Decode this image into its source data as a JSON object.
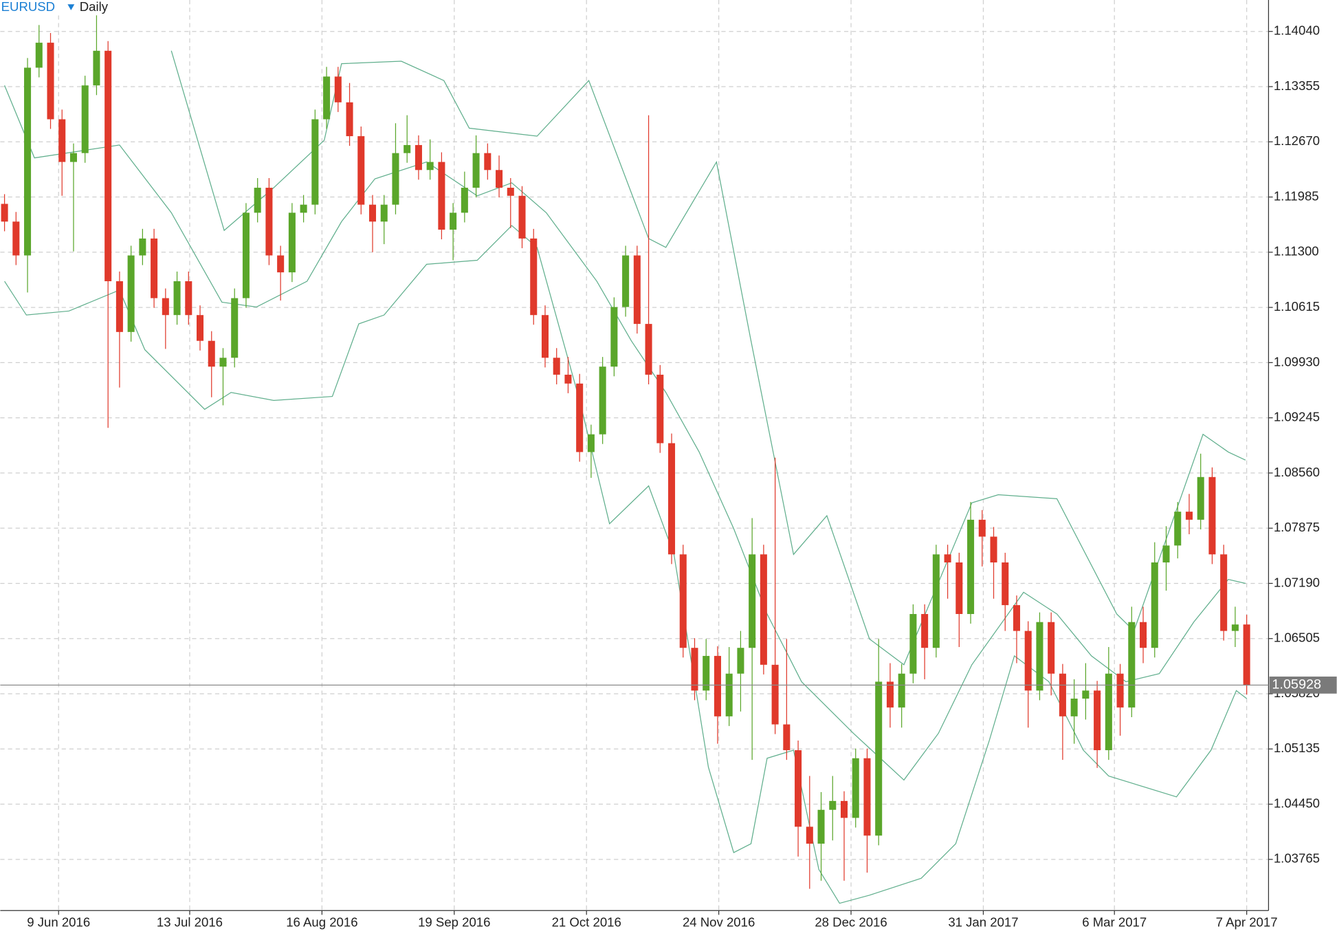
{
  "chart_data": {
    "type": "candlestick",
    "symbol": "EURUSD",
    "timeframe": "Daily",
    "up_color": "#5aa62a",
    "down_color": "#e0392b",
    "grid": true,
    "xlim": [
      -0.37,
      109.9
    ],
    "ylim": [
      1.0313,
      1.1443
    ],
    "xticks": [
      {
        "value": 4.7,
        "label": "9 Jun 2016"
      },
      {
        "value": 16.1,
        "label": "13 Jul 2016"
      },
      {
        "value": 27.6,
        "label": "16 Aug 2016"
      },
      {
        "value": 39.1,
        "label": "19 Sep 2016"
      },
      {
        "value": 50.6,
        "label": "21 Oct 2016"
      },
      {
        "value": 62.1,
        "label": "24 Nov 2016"
      },
      {
        "value": 73.6,
        "label": "28 Dec 2016"
      },
      {
        "value": 85.1,
        "label": "31 Jan 2017"
      },
      {
        "value": 96.5,
        "label": "6 Mar 2017"
      },
      {
        "value": 108,
        "label": "7 Apr 2017"
      }
    ],
    "yticks": [
      {
        "value": 1.1404,
        "label": "1.14040"
      },
      {
        "value": 1.13355,
        "label": "1.13355"
      },
      {
        "value": 1.1267,
        "label": "1.12670"
      },
      {
        "value": 1.11985,
        "label": "1.11985"
      },
      {
        "value": 1.113,
        "label": "1.11300"
      },
      {
        "value": 1.10615,
        "label": "1.10615"
      },
      {
        "value": 1.0993,
        "label": "1.09930"
      },
      {
        "value": 1.09245,
        "label": "1.09245"
      },
      {
        "value": 1.0856,
        "label": "1.08560"
      },
      {
        "value": 1.07875,
        "label": "1.07875"
      },
      {
        "value": 1.0719,
        "label": "1.07190"
      },
      {
        "value": 1.06505,
        "label": "1.06505"
      },
      {
        "value": 1.0582,
        "label": "1.05820"
      },
      {
        "value": 1.05135,
        "label": "1.05135"
      },
      {
        "value": 1.0445,
        "label": "1.04450"
      },
      {
        "value": 1.03765,
        "label": "1.03765"
      }
    ],
    "last_price": {
      "value": 1.05928,
      "label": "1.05928"
    },
    "ohlc": [
      [
        1.119,
        1.1202,
        1.1156,
        1.1168
      ],
      [
        1.1168,
        1.118,
        1.1114,
        1.1126
      ],
      [
        1.1126,
        1.1371,
        1.108,
        1.1359
      ],
      [
        1.1359,
        1.1412,
        1.1347,
        1.139
      ],
      [
        1.139,
        1.1402,
        1.1283,
        1.1295
      ],
      [
        1.1295,
        1.1307,
        1.12,
        1.1242
      ],
      [
        1.1242,
        1.1265,
        1.1131,
        1.1253
      ],
      [
        1.1253,
        1.1349,
        1.1241,
        1.1337
      ],
      [
        1.1337,
        1.1425,
        1.1325,
        1.138
      ],
      [
        1.138,
        1.1392,
        1.0912,
        1.1094
      ],
      [
        1.1094,
        1.1106,
        1.0962,
        1.1031
      ],
      [
        1.1031,
        1.1138,
        1.1019,
        1.1126
      ],
      [
        1.1126,
        1.1159,
        1.1114,
        1.1147
      ],
      [
        1.1147,
        1.1159,
        1.1061,
        1.1073
      ],
      [
        1.1073,
        1.1085,
        1.101,
        1.1052
      ],
      [
        1.1052,
        1.1106,
        1.104,
        1.1094
      ],
      [
        1.1094,
        1.1106,
        1.104,
        1.1052
      ],
      [
        1.1052,
        1.1064,
        1.1008,
        1.102
      ],
      [
        1.102,
        1.1032,
        1.095,
        1.0988
      ],
      [
        1.0988,
        1.1011,
        1.094,
        1.0999
      ],
      [
        1.0999,
        1.1085,
        1.0987,
        1.1073
      ],
      [
        1.1073,
        1.1191,
        1.1061,
        1.1179
      ],
      [
        1.1179,
        1.1222,
        1.1167,
        1.121
      ],
      [
        1.121,
        1.1222,
        1.1114,
        1.1126
      ],
      [
        1.1126,
        1.1138,
        1.107,
        1.1105
      ],
      [
        1.1105,
        1.1191,
        1.1093,
        1.1179
      ],
      [
        1.1179,
        1.1201,
        1.1167,
        1.1189
      ],
      [
        1.1189,
        1.1307,
        1.1177,
        1.1295
      ],
      [
        1.1295,
        1.136,
        1.1283,
        1.1348
      ],
      [
        1.1348,
        1.136,
        1.1304,
        1.1316
      ],
      [
        1.1316,
        1.134,
        1.1262,
        1.1274
      ],
      [
        1.1274,
        1.1286,
        1.1177,
        1.1189
      ],
      [
        1.1189,
        1.1201,
        1.113,
        1.1168
      ],
      [
        1.1168,
        1.1201,
        1.114,
        1.1189
      ],
      [
        1.1189,
        1.129,
        1.1177,
        1.1253
      ],
      [
        1.1253,
        1.13,
        1.1241,
        1.1263
      ],
      [
        1.1263,
        1.1275,
        1.122,
        1.1232
      ],
      [
        1.1232,
        1.127,
        1.122,
        1.1242
      ],
      [
        1.1242,
        1.1254,
        1.1146,
        1.1158
      ],
      [
        1.1158,
        1.1191,
        1.112,
        1.1179
      ],
      [
        1.1179,
        1.123,
        1.1167,
        1.121
      ],
      [
        1.121,
        1.1275,
        1.1198,
        1.1253
      ],
      [
        1.1253,
        1.1265,
        1.122,
        1.1232
      ],
      [
        1.1232,
        1.125,
        1.1198,
        1.121
      ],
      [
        1.121,
        1.1222,
        1.116,
        1.12
      ],
      [
        1.12,
        1.1212,
        1.1135,
        1.1147
      ],
      [
        1.1147,
        1.1159,
        1.104,
        1.1052
      ],
      [
        1.1052,
        1.1064,
        1.0987,
        1.0999
      ],
      [
        1.0999,
        1.1011,
        1.0966,
        1.0978
      ],
      [
        1.0978,
        1.1,
        1.0955,
        1.0967
      ],
      [
        1.0967,
        1.0979,
        1.087,
        1.0882
      ],
      [
        1.0882,
        1.0916,
        1.085,
        1.0904
      ],
      [
        1.0904,
        1.1,
        1.0892,
        1.0988
      ],
      [
        1.0988,
        1.1074,
        1.0976,
        1.1062
      ],
      [
        1.1062,
        1.1138,
        1.105,
        1.1126
      ],
      [
        1.1126,
        1.1138,
        1.1029,
        1.1041
      ],
      [
        1.1041,
        1.13,
        1.0966,
        1.0978
      ],
      [
        1.0978,
        1.099,
        1.0881,
        1.0893
      ],
      [
        1.0893,
        1.0905,
        1.0743,
        1.0755
      ],
      [
        1.0755,
        1.0767,
        1.0627,
        1.0639
      ],
      [
        1.0639,
        1.0651,
        1.0574,
        1.0586
      ],
      [
        1.0586,
        1.065,
        1.0574,
        1.0629
      ],
      [
        1.0629,
        1.0641,
        1.052,
        1.0554
      ],
      [
        1.0554,
        1.064,
        1.0542,
        1.0607
      ],
      [
        1.0607,
        1.066,
        1.056,
        1.0639
      ],
      [
        1.0639,
        1.08,
        1.05,
        1.0755
      ],
      [
        1.0755,
        1.0767,
        1.0606,
        1.0618
      ],
      [
        1.0618,
        1.0875,
        1.0532,
        1.0544
      ],
      [
        1.0544,
        1.065,
        1.05,
        1.0512
      ],
      [
        1.0512,
        1.0524,
        1.038,
        1.0417
      ],
      [
        1.0417,
        1.048,
        1.034,
        1.0396
      ],
      [
        1.0396,
        1.046,
        1.035,
        1.0438
      ],
      [
        1.0438,
        1.048,
        1.04,
        1.0449
      ],
      [
        1.0449,
        1.0461,
        1.035,
        1.0428
      ],
      [
        1.0428,
        1.0514,
        1.0416,
        1.0502
      ],
      [
        1.0502,
        1.0514,
        1.036,
        1.0406
      ],
      [
        1.0406,
        1.065,
        1.0394,
        1.0597
      ],
      [
        1.0597,
        1.062,
        1.054,
        1.0565
      ],
      [
        1.0565,
        1.0619,
        1.054,
        1.0607
      ],
      [
        1.0607,
        1.0693,
        1.0595,
        1.0681
      ],
      [
        1.0681,
        1.0693,
        1.06,
        1.0639
      ],
      [
        1.0639,
        1.0767,
        1.0627,
        1.0755
      ],
      [
        1.0755,
        1.0767,
        1.07,
        1.0745
      ],
      [
        1.0745,
        1.0757,
        1.064,
        1.0681
      ],
      [
        1.0681,
        1.082,
        1.0669,
        1.0798
      ],
      [
        1.0798,
        1.081,
        1.074,
        1.0777
      ],
      [
        1.0777,
        1.0789,
        1.07,
        1.0745
      ],
      [
        1.0745,
        1.0757,
        1.066,
        1.0692
      ],
      [
        1.0692,
        1.0704,
        1.062,
        1.066
      ],
      [
        1.066,
        1.0672,
        1.054,
        1.0586
      ],
      [
        1.0586,
        1.0683,
        1.0574,
        1.0671
      ],
      [
        1.0671,
        1.0683,
        1.058,
        1.0607
      ],
      [
        1.0607,
        1.0619,
        1.05,
        1.0554
      ],
      [
        1.0554,
        1.06,
        1.052,
        1.0576
      ],
      [
        1.0576,
        1.062,
        1.055,
        1.0586
      ],
      [
        1.0586,
        1.0598,
        1.049,
        1.0512
      ],
      [
        1.0512,
        1.064,
        1.05,
        1.0607
      ],
      [
        1.0607,
        1.0619,
        1.053,
        1.0565
      ],
      [
        1.0565,
        1.069,
        1.0553,
        1.0671
      ],
      [
        1.0671,
        1.069,
        1.062,
        1.0639
      ],
      [
        1.0639,
        1.077,
        1.0627,
        1.0745
      ],
      [
        1.0745,
        1.079,
        1.071,
        1.0766
      ],
      [
        1.0766,
        1.082,
        1.075,
        1.0808
      ],
      [
        1.0808,
        1.083,
        1.078,
        1.0798
      ],
      [
        1.0798,
        1.088,
        1.0786,
        1.0851
      ],
      [
        1.0851,
        1.0863,
        1.0743,
        1.0755
      ],
      [
        1.0755,
        1.0767,
        1.0648,
        1.066
      ],
      [
        1.066,
        1.069,
        1.064,
        1.0668
      ],
      [
        1.0668,
        1.068,
        1.0581,
        1.0593
      ]
    ],
    "bands": [
      {
        "color": "#5fae8c",
        "x": [
          14.5,
          19.1,
          23.4,
          27.8,
          29.3,
          34.5,
          38.2,
          40.4,
          46.3,
          50.8,
          56.0,
          57.5,
          61.9,
          64.9,
          68.6,
          71.5,
          75.2,
          78.2,
          84.1,
          86.4,
          91.5,
          96.7,
          98.2,
          104.2,
          106.4,
          107.9
        ],
        "values": [
          1.138,
          1.1157,
          1.121,
          1.1269,
          1.1364,
          1.1367,
          1.1343,
          1.1284,
          1.1274,
          1.1343,
          1.1147,
          1.1136,
          1.1242,
          1.102,
          1.0755,
          1.0803,
          1.065,
          1.0618,
          1.0819,
          1.0829,
          1.0824,
          1.0681,
          1.066,
          1.0904,
          1.0882,
          1.0872
        ]
      },
      {
        "color": "#5fae8c",
        "x": [
          0,
          2.6,
          10.0,
          14.5,
          18.9,
          21.9,
          26.3,
          29.3,
          32.2,
          36.7,
          41.1,
          44.1,
          47.1,
          51.5,
          54.5,
          57.5,
          60.4,
          63.4,
          66.3,
          69.3,
          73.8,
          78.2,
          81.2,
          84.1,
          88.6,
          91.5,
          94.5,
          97.5,
          100.4,
          103.4,
          106.4,
          107.9
        ],
        "values": [
          1.1337,
          1.1247,
          1.1263,
          1.1179,
          1.1068,
          1.1062,
          1.1094,
          1.1168,
          1.1221,
          1.1242,
          1.12,
          1.1216,
          1.1179,
          1.1094,
          1.102,
          1.0956,
          1.0882,
          1.0787,
          1.0681,
          1.0597,
          1.0533,
          1.0475,
          1.0533,
          1.0618,
          1.0708,
          1.0681,
          1.0629,
          1.0597,
          1.0607,
          1.0671,
          1.0724,
          1.0719
        ]
      },
      {
        "color": "#5fae8c",
        "x": [
          0,
          1.9,
          5.6,
          10.0,
          12.2,
          17.4,
          19.7,
          23.4,
          28.5,
          30.8,
          33.0,
          36.7,
          41.1,
          44.1,
          46.3,
          50.0,
          52.6,
          56.0,
          58.2,
          61.2,
          63.4,
          64.9,
          66.3,
          68.6,
          70.8,
          72.6,
          75.2,
          79.7,
          82.7,
          85.6,
          87.8,
          90.8,
          93.8,
          96.0,
          101.9,
          104.9,
          107.1,
          108.0
        ],
        "values": [
          1.1094,
          1.1052,
          1.1057,
          1.1083,
          1.1009,
          1.0935,
          1.0956,
          1.0946,
          1.0951,
          1.1041,
          1.1052,
          1.1115,
          1.112,
          1.1163,
          1.1136,
          1.0946,
          1.0793,
          1.084,
          1.0755,
          1.0491,
          1.0385,
          1.0396,
          1.0502,
          1.0512,
          1.0364,
          1.0322,
          1.0332,
          1.0353,
          1.0396,
          1.0523,
          1.0629,
          1.0597,
          1.0512,
          1.048,
          1.0454,
          1.0512,
          1.0586,
          1.0576
        ]
      }
    ]
  }
}
